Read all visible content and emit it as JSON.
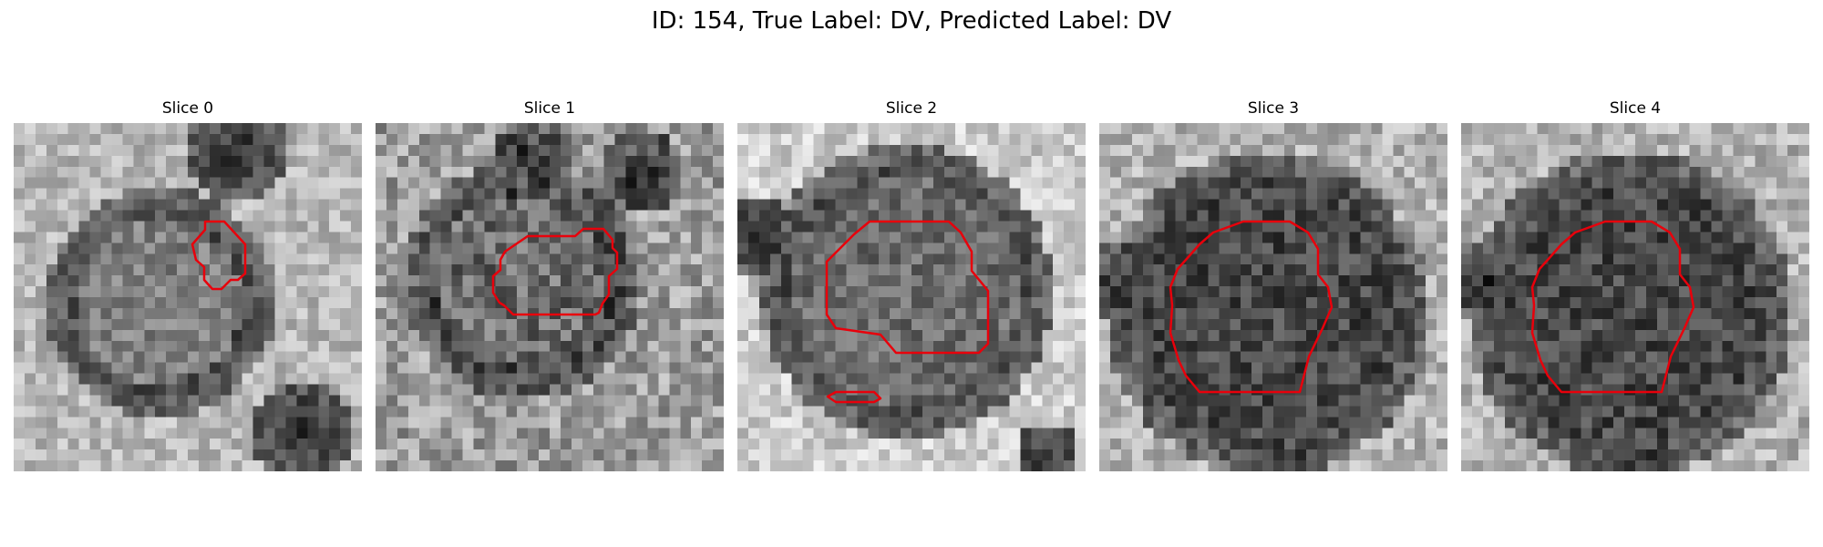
{
  "figure": {
    "title": "ID: 154, True Label: DV, Predicted Label: DV"
  },
  "slices": [
    {
      "title": "Slice 0"
    },
    {
      "title": "Slice 1"
    },
    {
      "title": "Slice 2"
    },
    {
      "title": "Slice 3"
    },
    {
      "title": "Slice 4"
    }
  ],
  "colors": {
    "contour": "#e8000b",
    "background": "#ffffff",
    "colormap": "grayscale"
  }
}
